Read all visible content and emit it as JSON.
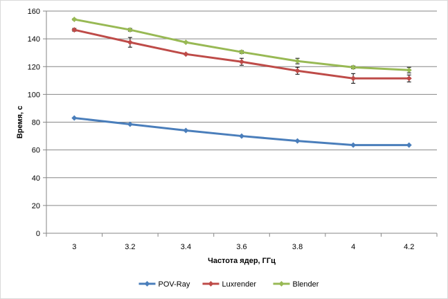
{
  "chart_data": {
    "type": "line",
    "title": "",
    "xlabel": "Частота ядер, ГГц",
    "ylabel": "Время, с",
    "categories": [
      "3",
      "3.2",
      "3.4",
      "3.6",
      "3.8",
      "4",
      "4.2"
    ],
    "ylim": [
      0,
      160
    ],
    "yticks": [
      0,
      20,
      40,
      60,
      80,
      100,
      120,
      140,
      160
    ],
    "grid": "horizontal",
    "legend": "bottom",
    "series": [
      {
        "name": "POV-Ray",
        "color": "#4a7ebb",
        "values": [
          83,
          78.5,
          74,
          70,
          66.5,
          63.5,
          63.5
        ],
        "errors": null
      },
      {
        "name": "Luxrender",
        "color": "#be4b48",
        "values": [
          146.5,
          137.5,
          129,
          123.5,
          117,
          111.5,
          111.5
        ],
        "errors": [
          1,
          3.5,
          0.5,
          2.5,
          2.5,
          3.5,
          2.5
        ]
      },
      {
        "name": "Blender",
        "color": "#98b954",
        "values": [
          154,
          146.5,
          137.5,
          130.5,
          124,
          119.5,
          117.5
        ],
        "errors": [
          0.5,
          1,
          0.5,
          1,
          2,
          1,
          2
        ]
      }
    ]
  }
}
